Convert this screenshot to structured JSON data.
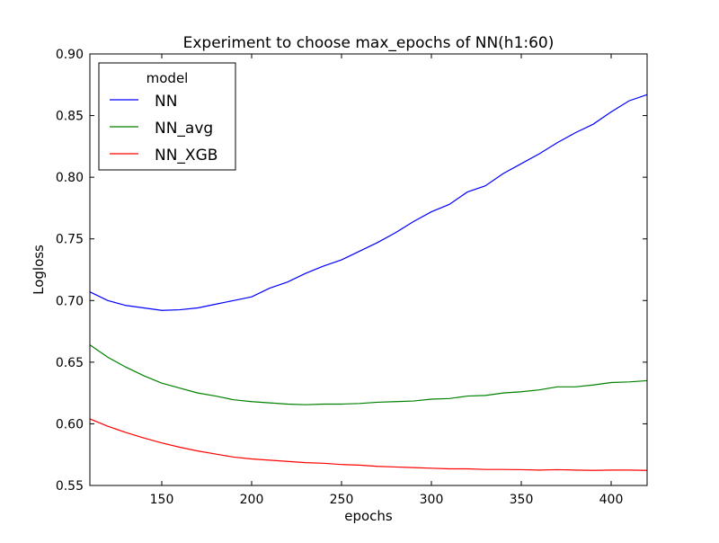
{
  "chart_data": {
    "type": "line",
    "title": "Experiment to choose max_epochs of NN(h1:60)",
    "xlabel": "epochs",
    "ylabel": "Logloss",
    "xlim": [
      110,
      420
    ],
    "ylim": [
      0.55,
      0.9
    ],
    "xticks": [
      150,
      200,
      250,
      300,
      350,
      400
    ],
    "yticks": [
      0.55,
      0.6,
      0.65,
      0.7,
      0.75,
      0.8,
      0.85,
      0.9
    ],
    "grid": false,
    "legend": {
      "title": "model",
      "placement": "top-left"
    },
    "x": [
      110,
      120,
      130,
      140,
      150,
      160,
      170,
      180,
      190,
      200,
      210,
      220,
      230,
      240,
      250,
      260,
      270,
      280,
      290,
      300,
      310,
      320,
      330,
      340,
      350,
      360,
      370,
      380,
      390,
      400,
      410,
      420
    ],
    "series": [
      {
        "name": "NN",
        "color": "#0000ff",
        "values": [
          0.707,
          0.7,
          0.696,
          0.694,
          0.692,
          0.6925,
          0.694,
          0.697,
          0.7,
          0.703,
          0.71,
          0.715,
          0.722,
          0.728,
          0.733,
          0.74,
          0.747,
          0.755,
          0.764,
          0.772,
          0.778,
          0.788,
          0.793,
          0.803,
          0.811,
          0.819,
          0.828,
          0.836,
          0.843,
          0.853,
          0.862,
          0.867
        ]
      },
      {
        "name": "NN_avg",
        "color": "#008000",
        "values": [
          0.664,
          0.654,
          0.646,
          0.639,
          0.633,
          0.629,
          0.625,
          0.6225,
          0.6195,
          0.618,
          0.617,
          0.616,
          0.6155,
          0.616,
          0.616,
          0.6165,
          0.6175,
          0.618,
          0.6185,
          0.62,
          0.6205,
          0.6225,
          0.623,
          0.625,
          0.626,
          0.6275,
          0.63,
          0.63,
          0.6315,
          0.6335,
          0.634,
          0.635
        ]
      },
      {
        "name": "NN_XGB",
        "color": "#ff0000",
        "values": [
          0.604,
          0.598,
          0.593,
          0.5885,
          0.5845,
          0.581,
          0.578,
          0.5755,
          0.573,
          0.5715,
          0.5705,
          0.5695,
          0.5685,
          0.568,
          0.567,
          0.5665,
          0.5655,
          0.565,
          0.5645,
          0.564,
          0.5635,
          0.5635,
          0.563,
          0.563,
          0.5628,
          0.5625,
          0.5628,
          0.5625,
          0.5622,
          0.5625,
          0.5625,
          0.5622
        ]
      }
    ]
  }
}
